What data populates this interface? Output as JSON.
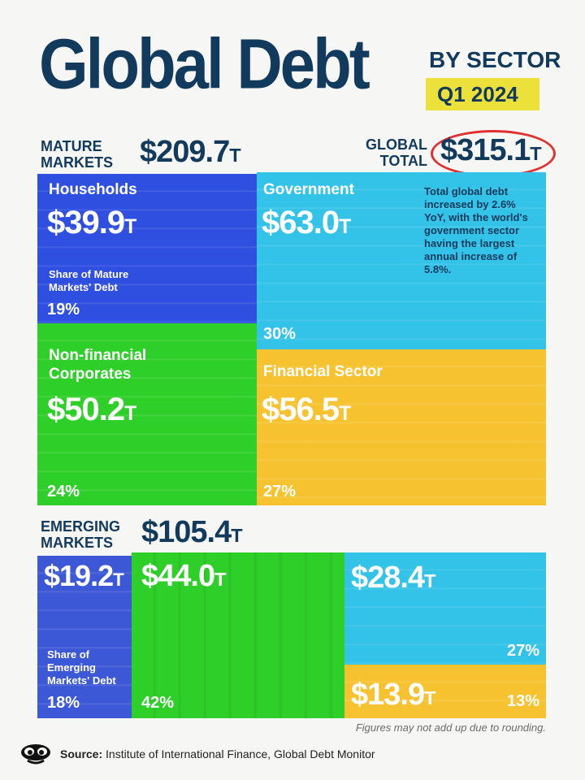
{
  "header": {
    "title": "Global Debt",
    "subtitle": "BY SECTOR",
    "period": "Q1 2024"
  },
  "mature": {
    "label": "MATURE\nMARKETS",
    "total_value": "$209.7",
    "total_unit": "T"
  },
  "global": {
    "label": "GLOBAL\nTOTAL",
    "total_value": "$315.1",
    "total_unit": "T"
  },
  "note": "Total global debt increased by 2.6% YoY, with the world's government sector having the largest annual increase of 5.8%.",
  "share_mature_label": "Share of Mature\nMarkets' Debt",
  "emerging": {
    "label": "EMERGING\nMARKETS",
    "total_value": "$105.4",
    "total_unit": "T"
  },
  "share_emerging_label": "Share of\nEmerging\nMarkets' Debt",
  "footnote": "Figures may not add up due to rounding.",
  "source": {
    "prefix": "Source:",
    "text": " Institute of International Finance, Global Debt Monitor"
  },
  "colors": {
    "households": "#2f4fe0",
    "government": "#34c3e8",
    "corporates": "#2fcf2a",
    "financial": "#f6c230"
  },
  "chart_data": {
    "type": "treemap",
    "title": "Global Debt",
    "subtitle": "BY SECTOR",
    "period": "Q1 2024",
    "unit": "T",
    "total": 315.1,
    "groups": [
      {
        "name": "MATURE MARKETS",
        "total": 209.7,
        "sectors": [
          {
            "name": "Households",
            "value": 39.9,
            "value_label": "$39.9",
            "share": 19,
            "share_label": "19%"
          },
          {
            "name": "Government",
            "value": 63.0,
            "value_label": "$63.0",
            "share": 30,
            "share_label": "30%"
          },
          {
            "name": "Non-financial\nCorporates",
            "value": 50.2,
            "value_label": "$50.2",
            "share": 24,
            "share_label": "24%"
          },
          {
            "name": "Financial Sector",
            "value": 56.5,
            "value_label": "$56.5",
            "share": 27,
            "share_label": "27%"
          }
        ]
      },
      {
        "name": "EMERGING MARKETS",
        "total": 105.4,
        "sectors": [
          {
            "name": "",
            "value": 19.2,
            "value_label": "$19.2",
            "share": 18,
            "share_label": "18%"
          },
          {
            "name": "",
            "value": 44.0,
            "value_label": "$44.0",
            "share": 42,
            "share_label": "42%"
          },
          {
            "name": "",
            "value": 28.4,
            "value_label": "$28.4",
            "share": 27,
            "share_label": "27%"
          },
          {
            "name": "",
            "value": 13.9,
            "value_label": "$13.9",
            "share": 13,
            "share_label": "13%"
          }
        ]
      }
    ]
  }
}
